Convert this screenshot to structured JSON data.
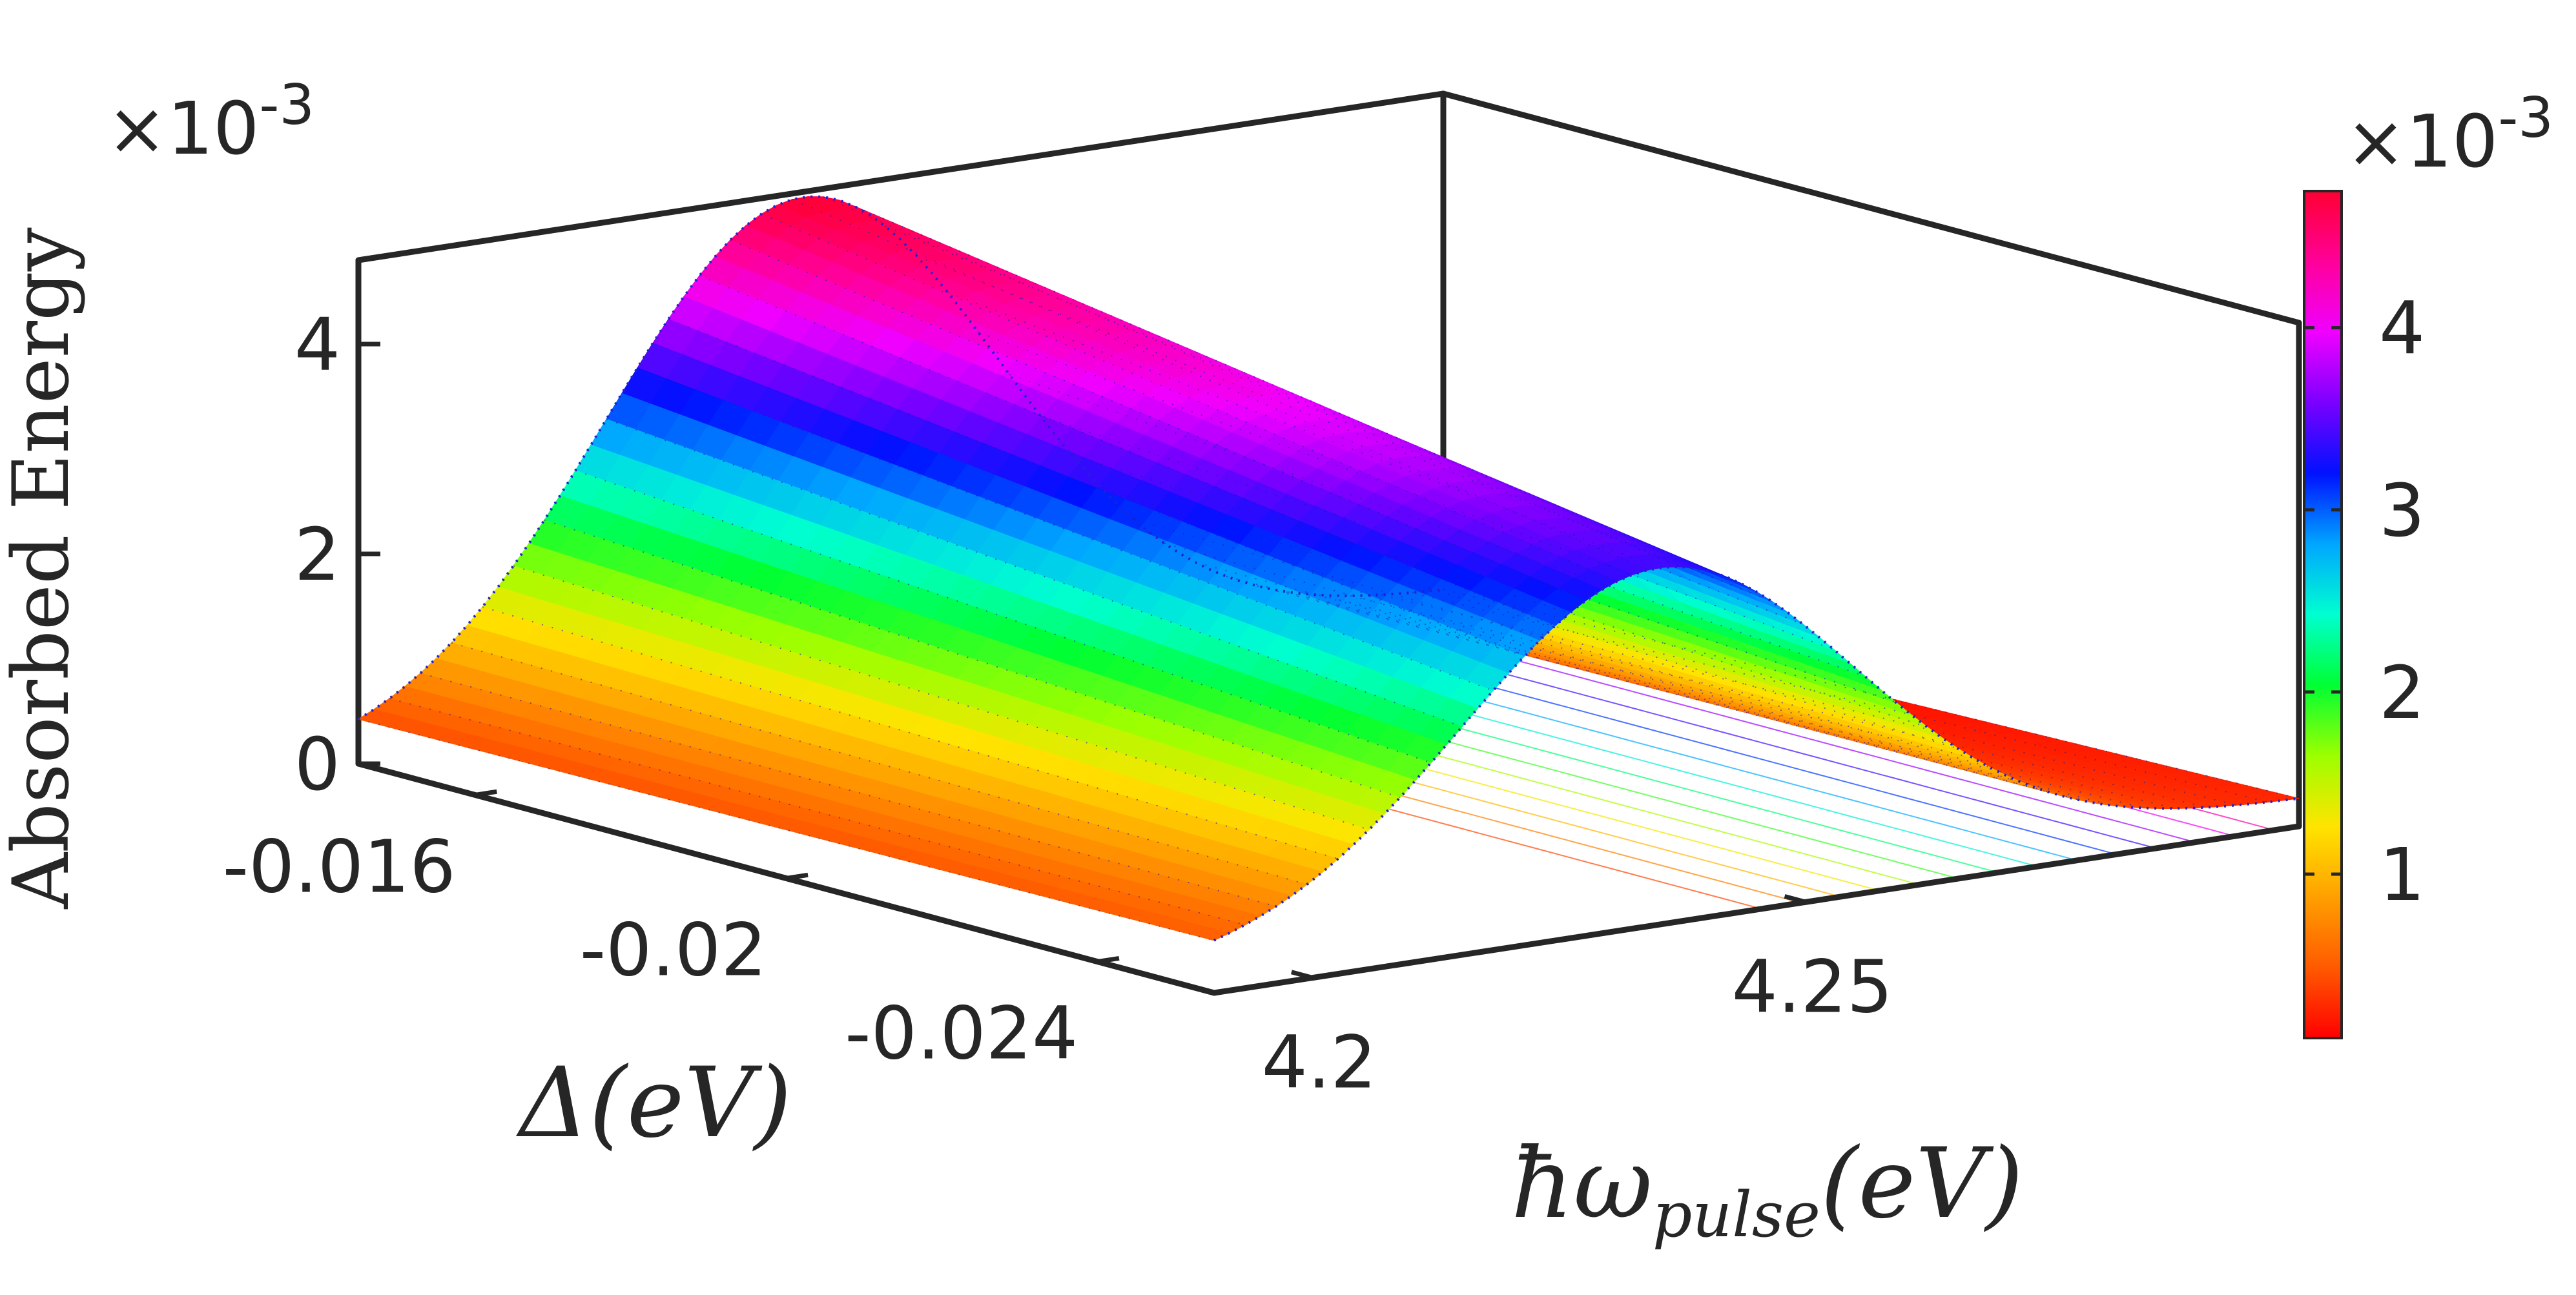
{
  "chart_data": {
    "type": "surface",
    "x_axis": {
      "label": "Δ(eV)",
      "ticks": [
        -0.016,
        -0.02,
        -0.024
      ],
      "tick_labels": [
        "-0.016",
        "-0.02",
        "-0.024"
      ],
      "range": [
        -0.0145,
        -0.0255
      ]
    },
    "y_axis": {
      "label_main": "ħω",
      "label_sub": "pulse",
      "label_unit": "(eV)",
      "ticks": [
        4.2,
        4.25
      ],
      "tick_labels": [
        "4.2",
        "4.25"
      ],
      "range": [
        4.19,
        4.3
      ]
    },
    "z_axis": {
      "label": "Absorbed Energy",
      "multiplier": "×10",
      "exponent": "-3",
      "ticks": [
        0,
        2,
        4
      ],
      "tick_labels": [
        "0",
        "2",
        "4"
      ],
      "range": [
        0,
        4.8
      ]
    },
    "colorbar": {
      "multiplier": "×10",
      "exponent": "-3",
      "ticks": [
        1,
        2,
        3,
        4
      ],
      "tick_labels": [
        "1",
        "2",
        "3",
        "4"
      ],
      "range": [
        0.1,
        4.75
      ],
      "colormap": [
        "#ff0000",
        "#ff5a00",
        "#ffa000",
        "#ffe400",
        "#9cff00",
        "#00ff33",
        "#00ffd0",
        "#00a6ff",
        "#0011ff",
        "#7a00ff",
        "#f000ff",
        "#ff0099",
        "#ff0033"
      ]
    },
    "surface": {
      "description_peak": "Gaussian peak in photon energy, amplitude decreasing with Δ",
      "peak_center_eV": 4.235,
      "peak_width_eV": 0.02,
      "amplitude_at_x_start": 4.75,
      "amplitude_at_x_end": 3.4,
      "baseline_at_x_start": 0.05,
      "baseline_at_x_end": 0.25
    },
    "grid": false
  }
}
